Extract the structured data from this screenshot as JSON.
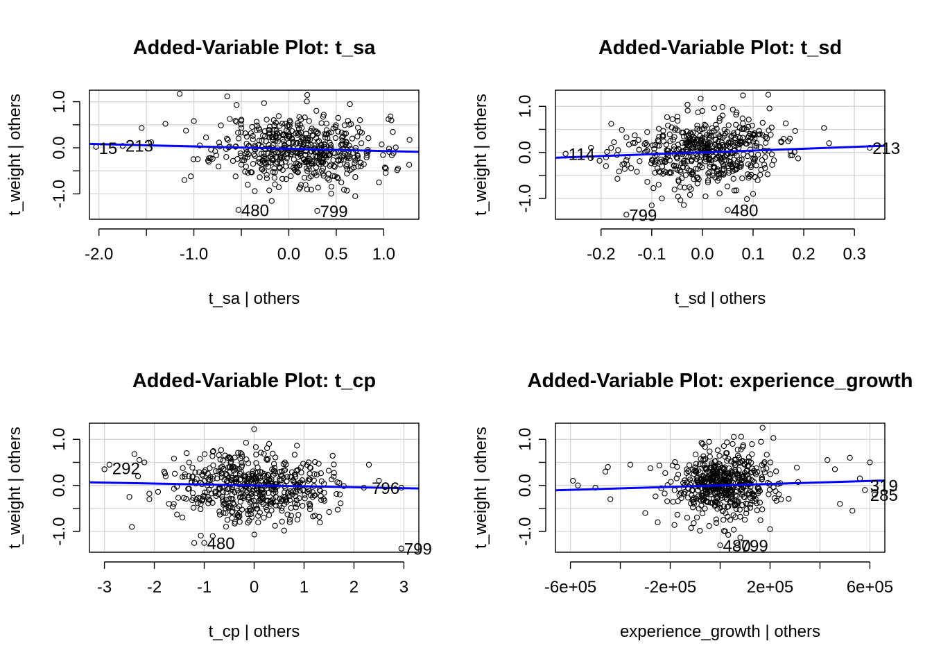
{
  "chart_data": [
    {
      "type": "scatter",
      "title": "Added-Variable Plot: t_sa",
      "xlabel": "t_sa | others",
      "ylabel": "t_weight  | others",
      "xlim": [
        -2.1,
        1.37
      ],
      "ylim": [
        -1.55,
        1.25
      ],
      "xticks": [
        -2.0,
        -1.0,
        0.0,
        0.5,
        1.0
      ],
      "xtick_labels": [
        "-2.0",
        "-1.0",
        "0.0",
        "0.5",
        "1.0"
      ],
      "xgrid": [
        -2.0,
        -1.5,
        -1.0,
        -0.5,
        0.0,
        0.5,
        1.0
      ],
      "yticks": [
        -1.0,
        0.0,
        1.0
      ],
      "ytick_labels": [
        "-1.0",
        "0.0",
        "1.0"
      ],
      "ygrid": [
        -1.0,
        -0.5,
        0.0,
        0.5,
        1.0
      ],
      "grid": true,
      "fit_line": {
        "slope": -0.05,
        "intercept": -0.02,
        "color": "#0000ff"
      },
      "labeled_points": [
        {
          "label": "15",
          "x": -2.03,
          "y": 0.0
        },
        {
          "label": "213",
          "x": -1.75,
          "y": 0.05
        },
        {
          "label": "480",
          "x": -0.53,
          "y": -1.35
        },
        {
          "label": "799",
          "x": 0.3,
          "y": -1.37
        }
      ],
      "cloud": {
        "n": 520,
        "x_mean": 0.1,
        "x_sd": 0.42,
        "y_sd": 0.38,
        "seed": 11
      },
      "extra_points": [
        {
          "x": -2.03,
          "y": 0.02
        },
        {
          "x": -1.75,
          "y": 0.04
        },
        {
          "x": -1.55,
          "y": 0.43
        },
        {
          "x": -1.45,
          "y": 0.12
        },
        {
          "x": -1.3,
          "y": 0.52
        },
        {
          "x": -1.15,
          "y": 1.17
        },
        {
          "x": -1.1,
          "y": -0.7
        },
        {
          "x": -1.0,
          "y": 0.58
        },
        {
          "x": 0.75,
          "y": 0.6
        },
        {
          "x": 1.05,
          "y": 0.62
        },
        {
          "x": 1.15,
          "y": -0.45
        },
        {
          "x": 0.95,
          "y": -0.75
        },
        {
          "x": -0.55,
          "y": 0.93
        },
        {
          "x": -0.53,
          "y": -1.35
        },
        {
          "x": 0.3,
          "y": -1.37
        },
        {
          "x": 0.7,
          "y": -1.05
        }
      ]
    },
    {
      "type": "scatter",
      "title": "Added-Variable Plot: t_sd",
      "xlabel": "t_sd | others",
      "ylabel": "t_weight  | others",
      "xlim": [
        -0.29,
        0.36
      ],
      "ylim": [
        -1.45,
        1.35
      ],
      "xticks": [
        -0.2,
        -0.1,
        0.0,
        0.1,
        0.2,
        0.3
      ],
      "xtick_labels": [
        "-0.2",
        "-0.1",
        "0.0",
        "0.1",
        "0.2",
        "0.3"
      ],
      "xgrid": [
        -0.2,
        -0.1,
        0.0,
        0.1,
        0.2,
        0.3
      ],
      "yticks": [
        -1.0,
        0.0,
        1.0
      ],
      "ytick_labels": [
        "-1.0",
        "0.0",
        "1.0"
      ],
      "ygrid": [
        -1.0,
        -0.5,
        0.0,
        0.5,
        1.0
      ],
      "grid": true,
      "fit_line": {
        "slope": 0.4,
        "intercept": 0.0,
        "color": "#0000ff"
      },
      "labeled_points": [
        {
          "label": "114",
          "x": -0.27,
          "y": -0.03
        },
        {
          "label": "213",
          "x": 0.33,
          "y": 0.1
        },
        {
          "label": "799",
          "x": -0.15,
          "y": -1.35
        },
        {
          "label": "480",
          "x": 0.05,
          "y": -1.25
        }
      ],
      "cloud": {
        "n": 520,
        "x_mean": 0.0,
        "x_sd": 0.075,
        "y_sd": 0.38,
        "seed": 23
      },
      "extra_points": [
        {
          "x": -0.27,
          "y": -0.03
        },
        {
          "x": -0.22,
          "y": 0.1
        },
        {
          "x": 0.33,
          "y": 0.1
        },
        {
          "x": 0.24,
          "y": 0.53
        },
        {
          "x": 0.25,
          "y": 0.2
        },
        {
          "x": -0.15,
          "y": -1.35
        },
        {
          "x": 0.05,
          "y": -1.25
        },
        {
          "x": -0.1,
          "y": -1.15
        },
        {
          "x": 0.13,
          "y": 1.25
        },
        {
          "x": 0.06,
          "y": 0.93
        },
        {
          "x": 0.0,
          "y": 0.9
        },
        {
          "x": 0.1,
          "y": -0.9
        },
        {
          "x": -0.18,
          "y": 0.62
        }
      ]
    },
    {
      "type": "scatter",
      "title": "Added-Variable Plot: t_cp",
      "xlabel": "t_cp | others",
      "ylabel": "t_weight  | others",
      "xlim": [
        -3.3,
        3.3
      ],
      "ylim": [
        -1.45,
        1.35
      ],
      "xticks": [
        -3,
        -2,
        -1,
        0,
        1,
        2,
        3
      ],
      "xtick_labels": [
        "-3",
        "-2",
        "-1",
        "0",
        "1",
        "2",
        "3"
      ],
      "xgrid": [
        -3,
        -2,
        -1,
        0,
        1,
        2,
        3
      ],
      "yticks": [
        -1.0,
        0.0,
        1.0
      ],
      "ytick_labels": [
        "-1.0",
        "0.0",
        "1.0"
      ],
      "ygrid": [
        -1.0,
        -0.5,
        0.0,
        0.5,
        1.0
      ],
      "grid": true,
      "fit_line": {
        "slope": -0.02,
        "intercept": 0.0,
        "color": "#0000ff"
      },
      "labeled_points": [
        {
          "label": "292",
          "x": -2.9,
          "y": 0.38
        },
        {
          "label": "480",
          "x": -1.0,
          "y": -1.25
        },
        {
          "label": "796",
          "x": 2.3,
          "y": -0.05
        },
        {
          "label": "799",
          "x": 2.95,
          "y": -1.37
        }
      ],
      "cloud": {
        "n": 520,
        "x_mean": 0.0,
        "x_sd": 0.75,
        "y_sd": 0.38,
        "seed": 37
      },
      "extra_points": [
        {
          "x": -3.0,
          "y": 0.35
        },
        {
          "x": -2.9,
          "y": 0.45
        },
        {
          "x": -2.4,
          "y": 0.68
        },
        {
          "x": -2.3,
          "y": 0.55
        },
        {
          "x": -2.2,
          "y": 0.5
        },
        {
          "x": -2.45,
          "y": -0.9
        },
        {
          "x": -2.5,
          "y": -0.25
        },
        {
          "x": -2.1,
          "y": -0.18
        },
        {
          "x": -2.1,
          "y": -0.3
        },
        {
          "x": -1.35,
          "y": 0.7
        },
        {
          "x": -1.0,
          "y": -1.25
        },
        {
          "x": -1.2,
          "y": -1.25
        },
        {
          "x": 0.0,
          "y": 1.22
        },
        {
          "x": 0.3,
          "y": 0.9
        },
        {
          "x": 2.3,
          "y": 0.45
        },
        {
          "x": 2.5,
          "y": 0.1
        },
        {
          "x": 2.95,
          "y": -1.37
        },
        {
          "x": 2.95,
          "y": -0.05
        },
        {
          "x": 2.2,
          "y": -0.05
        },
        {
          "x": 0.6,
          "y": -0.98
        }
      ]
    },
    {
      "type": "scatter",
      "title": "Added-Variable Plot: experience_growth",
      "xlabel": "experience_growth | others",
      "ylabel": "t_weight  | others",
      "xlim": [
        -660000,
        660000
      ],
      "ylim": [
        -1.45,
        1.35
      ],
      "xticks": [
        -600000,
        -200000,
        200000,
        600000
      ],
      "xtick_labels": [
        "-6e+05",
        "-2e+05",
        "2e+05",
        "6e+05"
      ],
      "xgrid": [
        -600000,
        -400000,
        -200000,
        0,
        200000,
        400000,
        600000
      ],
      "yticks": [
        -1.0,
        0.0,
        1.0
      ],
      "ytick_labels": [
        "-1.0",
        "0.0",
        "1.0"
      ],
      "ygrid": [
        -1.0,
        -0.5,
        0.0,
        0.5,
        1.0
      ],
      "grid": true,
      "fit_line": {
        "slope": 1.6e-07,
        "intercept": 0.0,
        "color": "#0000ff"
      },
      "labeled_points": [
        {
          "label": "480",
          "x": 0,
          "y": -1.3
        },
        {
          "label": "799",
          "x": 70000,
          "y": -1.3
        },
        {
          "label": "319",
          "x": 590000,
          "y": 0.0
        },
        {
          "label": "285",
          "x": 590000,
          "y": -0.2
        }
      ],
      "cloud": {
        "n": 520,
        "x_mean": 20000,
        "x_sd": 105000,
        "y_sd": 0.38,
        "seed": 53
      },
      "extra_points": [
        {
          "x": -590000,
          "y": 0.1
        },
        {
          "x": -570000,
          "y": 0.0
        },
        {
          "x": -500000,
          "y": -0.05
        },
        {
          "x": -460000,
          "y": 0.3
        },
        {
          "x": -450000,
          "y": 0.4
        },
        {
          "x": -440000,
          "y": -0.3
        },
        {
          "x": -360000,
          "y": 0.45
        },
        {
          "x": -300000,
          "y": -0.6
        },
        {
          "x": -250000,
          "y": -0.8
        },
        {
          "x": 430000,
          "y": 0.55
        },
        {
          "x": 460000,
          "y": 0.35
        },
        {
          "x": 520000,
          "y": 0.6
        },
        {
          "x": 560000,
          "y": 0.15
        },
        {
          "x": 580000,
          "y": -0.1
        },
        {
          "x": 600000,
          "y": 0.5
        },
        {
          "x": 620000,
          "y": -0.2
        },
        {
          "x": 530000,
          "y": -0.55
        },
        {
          "x": 480000,
          "y": -0.4
        },
        {
          "x": 170000,
          "y": 1.25
        },
        {
          "x": 200000,
          "y": -0.95
        },
        {
          "x": 0,
          "y": -1.3
        },
        {
          "x": 70000,
          "y": -1.3
        },
        {
          "x": -70000,
          "y": 0.9
        },
        {
          "x": 50000,
          "y": 0.9
        }
      ]
    }
  ]
}
